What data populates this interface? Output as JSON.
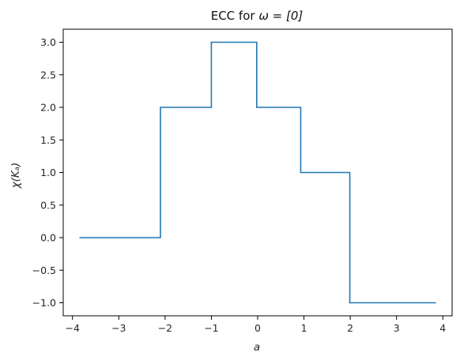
{
  "chart_data": {
    "type": "line",
    "title": "ECC for ω = [0]",
    "title_parts": {
      "prefix": "ECC for ",
      "math": "ω = [0]"
    },
    "xlabel": "a",
    "ylabel": "χ(Kₐ)",
    "xlim": [
      -4.2,
      4.2
    ],
    "ylim": [
      -1.2,
      3.2
    ],
    "x_ticks": [
      -4,
      -3,
      -2,
      -1,
      0,
      1,
      2,
      3,
      4
    ],
    "x_tick_labels": [
      "−4",
      "−3",
      "−2",
      "−1",
      "0",
      "1",
      "2",
      "3",
      "4"
    ],
    "y_ticks": [
      -1.0,
      -0.5,
      0.0,
      0.5,
      1.0,
      1.5,
      2.0,
      2.5,
      3.0
    ],
    "y_tick_labels": [
      "−1.0",
      "−0.5",
      "0.0",
      "0.5",
      "1.0",
      "1.5",
      "2.0",
      "2.5",
      "3.0"
    ],
    "grid": false,
    "line_color": "#1f77b4",
    "series": [
      {
        "step": "post",
        "x": [
          -3.85,
          -2.1,
          -1.0,
          -0.02,
          0.93,
          1.99,
          3.85
        ],
        "y": [
          0,
          2,
          3,
          2,
          1,
          -1,
          -1
        ]
      }
    ]
  }
}
